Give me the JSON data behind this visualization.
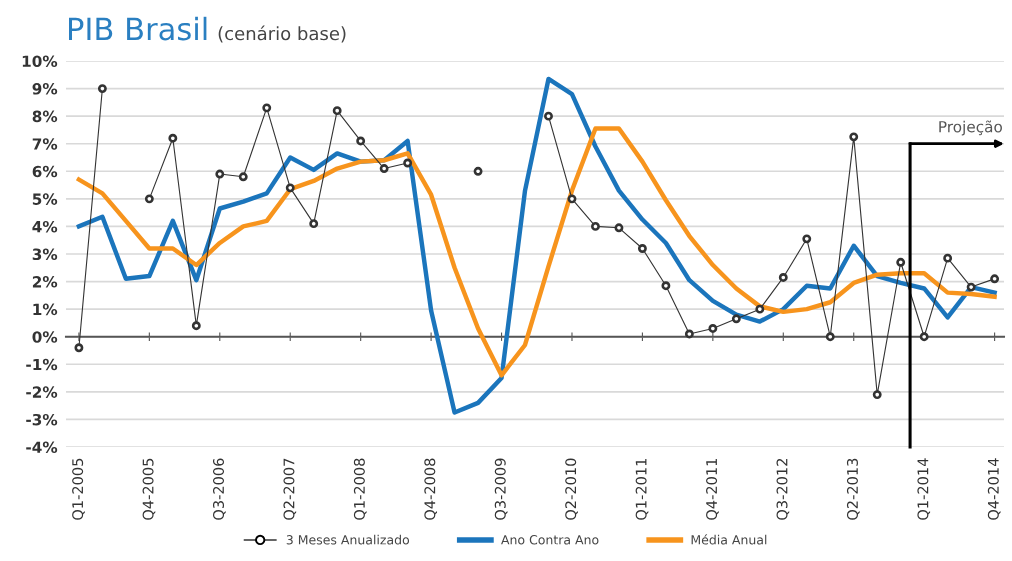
{
  "chart_data": {
    "type": "line",
    "title": "PIB Brasil",
    "subtitle": "(cenário base)",
    "categories": [
      "Q1-2005",
      null,
      null,
      "Q4-2005",
      null,
      null,
      "Q3-2006",
      null,
      null,
      "Q2-2007",
      null,
      null,
      "Q1-2008",
      null,
      null,
      "Q4-2008",
      null,
      null,
      "Q3-2009",
      null,
      null,
      "Q2-2010",
      null,
      null,
      "Q1-2011",
      null,
      null,
      "Q4-2011",
      null,
      null,
      "Q3-2012",
      null,
      null,
      "Q2-2013",
      null,
      null,
      "Q1-2014",
      null,
      null,
      "Q4-2014"
    ],
    "series": [
      {
        "name": "3 Meses Anualizado",
        "color": "#333333",
        "marker": "circle",
        "values": [
          -0.4,
          9.0,
          null,
          5.0,
          7.2,
          0.4,
          5.9,
          5.8,
          8.3,
          5.4,
          4.1,
          8.2,
          7.1,
          6.1,
          6.3,
          null,
          null,
          6.0,
          null,
          null,
          8.0,
          5.0,
          4.0,
          3.95,
          3.2,
          1.85,
          0.1,
          0.3,
          0.65,
          1.0,
          2.15,
          3.55,
          0.0,
          7.25,
          -2.1,
          2.7,
          0.0,
          2.85,
          1.8,
          2.1
        ]
      },
      {
        "name": "Ano Contra Ano",
        "color": "#1b75bc",
        "values": [
          4.0,
          4.35,
          2.1,
          2.2,
          4.2,
          2.05,
          4.65,
          4.9,
          5.2,
          6.5,
          6.05,
          6.65,
          6.35,
          6.4,
          7.1,
          0.95,
          -2.75,
          -2.4,
          -1.5,
          5.3,
          9.35,
          8.8,
          6.9,
          5.3,
          4.25,
          3.4,
          2.05,
          1.3,
          0.8,
          0.55,
          1.0,
          1.85,
          1.75,
          3.3,
          2.2,
          1.95,
          1.75,
          0.7,
          1.8,
          1.6
        ]
      },
      {
        "name": "Média Anual",
        "color": "#f7941d",
        "values": [
          5.7,
          5.2,
          4.2,
          3.2,
          3.2,
          2.6,
          3.4,
          4.0,
          4.2,
          5.35,
          5.65,
          6.1,
          6.35,
          6.4,
          6.65,
          5.15,
          2.5,
          0.3,
          -1.4,
          -0.3,
          2.55,
          5.3,
          7.55,
          7.55,
          6.35,
          4.95,
          3.65,
          2.6,
          1.75,
          1.1,
          0.9,
          1.0,
          1.25,
          1.95,
          2.25,
          2.3,
          2.3,
          1.6,
          1.55,
          1.45
        ]
      }
    ],
    "ylim": [
      -4,
      10
    ],
    "yticks": [
      {
        "value": -4,
        "label": "-4%"
      },
      {
        "value": -3,
        "label": "-3%"
      },
      {
        "value": -2,
        "label": "-2%"
      },
      {
        "value": -1,
        "label": "-1%"
      },
      {
        "value": 0,
        "label": "0%"
      },
      {
        "value": 1,
        "label": "1%"
      },
      {
        "value": 2,
        "label": "2%"
      },
      {
        "value": 3,
        "label": "3%"
      },
      {
        "value": 4,
        "label": "4%"
      },
      {
        "value": 5,
        "label": "5%"
      },
      {
        "value": 6,
        "label": "6%"
      },
      {
        "value": 7,
        "label": "7%"
      },
      {
        "value": 8,
        "label": "8%"
      },
      {
        "value": 9,
        "label": "9%"
      },
      {
        "value": 10,
        "label": "10%"
      }
    ],
    "grid": "y",
    "legend": "bottom",
    "annotations": [
      "Projeção"
    ]
  }
}
